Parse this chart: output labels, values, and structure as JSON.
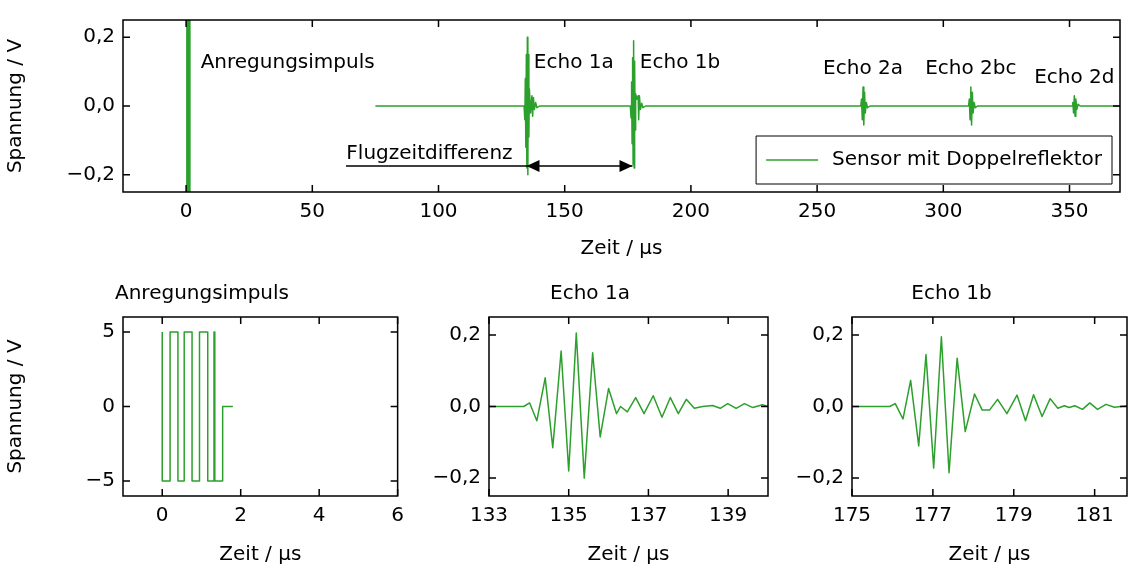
{
  "chart_data": [
    {
      "type": "line",
      "xlabel": "Zeit / µs",
      "ylabel": "Spannung / V",
      "xlim": [
        -25,
        370
      ],
      "ylim": [
        -0.25,
        0.25
      ],
      "xticks": [
        0,
        50,
        100,
        150,
        200,
        250,
        300,
        350
      ],
      "yticks": [
        {
          "value": -0.2,
          "label": "−0,2"
        },
        {
          "value": 0,
          "label": "0,0"
        },
        {
          "value": 0.2,
          "label": "0,2"
        }
      ],
      "legend": "bottom right",
      "bands": [
        {
          "axis": "x",
          "from": 0,
          "to": 1.8,
          "color": "#2ca02c"
        }
      ],
      "annotations": [
        {
          "text": "Anregungsimpuls",
          "x": 3,
          "y": 0.125
        },
        {
          "text": "Echo 1a",
          "x": 135,
          "y": 0.125
        },
        {
          "text": "Echo 1b",
          "x": 177,
          "y": 0.125
        },
        {
          "text": "Echo 2a",
          "x": 268.2,
          "y": 0.055
        },
        {
          "text": "Echo 2bc",
          "x": 310.9,
          "y": 0.055
        },
        {
          "text": "Echo 2d",
          "x": 351.9,
          "y": 0.03
        },
        {
          "text": "Flugzeitdifferenz",
          "x": 135.3,
          "y": -0.175
        }
      ],
      "series": [
        {
          "name": "Sensor mit Doppelreflektor",
          "color": "#2ca02c",
          "x": [
            75,
            133.9,
            134.2,
            134.4,
            134.6,
            134.8,
            135.0,
            135.2,
            135.4,
            135.6,
            135.8,
            136.0,
            136.5,
            137.0,
            137.3,
            137.6,
            138,
            138.5,
            139,
            140,
            142,
            176,
            176.3,
            176.5,
            176.7,
            176.9,
            177.1,
            177.3,
            177.5,
            177.7,
            177.9,
            178.1,
            178.6,
            179.1,
            179.3,
            179.6,
            180,
            180.5,
            181,
            182,
            185,
            267.3,
            267.6,
            267.9,
            268.2,
            268.5,
            268.8,
            269.1,
            269.5,
            270,
            271,
            310,
            310.3,
            310.6,
            310.9,
            311.2,
            311.5,
            311.8,
            312.2,
            312.7,
            313.5,
            351,
            351.3,
            351.6,
            351.9,
            352.2,
            352.5,
            352.9,
            353.4,
            354.2,
            370
          ],
          "values": [
            0,
            0,
            -0.04,
            0.08,
            -0.12,
            0.15,
            -0.18,
            0.2,
            -0.2,
            0.15,
            -0.09,
            0.05,
            -0.02,
            0.03,
            -0.03,
            0.025,
            -0.01,
            0.01,
            -0.005,
            0,
            0,
            0,
            -0.035,
            0.07,
            -0.11,
            0.14,
            -0.17,
            0.19,
            -0.18,
            0.13,
            -0.07,
            0.035,
            0.02,
            0.03,
            -0.04,
            0.03,
            -0.01,
            0.008,
            -0.005,
            0,
            0,
            0,
            0.02,
            -0.04,
            0.055,
            -0.055,
            0.04,
            -0.02,
            0.01,
            -0.005,
            0,
            0,
            0.02,
            -0.04,
            0.055,
            -0.055,
            0.04,
            -0.02,
            0.01,
            -0.005,
            0,
            0,
            0.01,
            -0.02,
            0.03,
            -0.03,
            0.02,
            -0.01,
            0.005,
            0,
            0
          ]
        }
      ]
    },
    {
      "type": "step",
      "title": "Anregungsimpuls",
      "xlabel": "Zeit / µs",
      "ylabel": "Spannung / V",
      "xlim": [
        -1,
        6
      ],
      "ylim": [
        -6,
        6
      ],
      "xticks": [
        0,
        2,
        4,
        6
      ],
      "yticks": [
        {
          "value": -5,
          "label": "−5"
        },
        0,
        5
      ],
      "series": [
        {
          "color": "#2ca02c",
          "x": [
            0,
            0.2,
            0.4,
            0.56,
            0.76,
            0.95,
            1.16,
            1.32,
            1.34,
            1.54,
            1.73,
            1.8
          ],
          "values": [
            5,
            -5,
            5,
            -5,
            5,
            -5,
            5,
            -5,
            5,
            -5,
            0,
            0
          ]
        }
      ]
    },
    {
      "type": "line",
      "title": "Echo 1a",
      "xlabel": "Zeit / µs",
      "xlim": [
        133,
        140
      ],
      "ylim": [
        -0.25,
        0.25
      ],
      "xticks": [
        133,
        135,
        137,
        139
      ],
      "yticks": [
        {
          "value": -0.2,
          "label": "−0,2"
        },
        {
          "value": 0,
          "label": "0,0"
        },
        {
          "value": 0.2,
          "label": "0,2"
        }
      ],
      "series": [
        {
          "color": "#2ca02c",
          "x": [
            133,
            133.87,
            134.02,
            134.2,
            134.41,
            134.6,
            134.81,
            135.0,
            135.19,
            135.39,
            135.6,
            135.79,
            136.0,
            136.2,
            136.3,
            136.47,
            136.68,
            136.89,
            137.12,
            137.34,
            137.55,
            137.75,
            137.95,
            138.15,
            138.36,
            138.61,
            138.8,
            138.99,
            139.2,
            139.41,
            139.62,
            139.86,
            140
          ],
          "values": [
            0,
            0,
            0.01,
            -0.04,
            0.08,
            -0.115,
            0.155,
            -0.18,
            0.205,
            -0.2,
            0.15,
            -0.085,
            0.05,
            -0.02,
            0,
            -0.015,
            0.025,
            -0.02,
            0.03,
            -0.03,
            0.025,
            -0.02,
            0.02,
            -0.005,
            0,
            0.003,
            -0.005,
            0.008,
            -0.005,
            0.008,
            -0.003,
            0.005,
            0
          ]
        }
      ]
    },
    {
      "type": "line",
      "title": "Echo 1b",
      "xlabel": "Zeit / µs",
      "xlim": [
        175,
        181.8
      ],
      "ylim": [
        -0.25,
        0.25
      ],
      "xticks": [
        175,
        177,
        179,
        181
      ],
      "yticks": [
        {
          "value": -0.2,
          "label": "−0,2"
        },
        {
          "value": 0,
          "label": "0,0"
        },
        {
          "value": 0.2,
          "label": "0,2"
        }
      ],
      "series": [
        {
          "color": "#2ca02c",
          "x": [
            175,
            175.93,
            176.07,
            176.26,
            176.45,
            176.65,
            176.83,
            177.02,
            177.21,
            177.4,
            177.6,
            177.8,
            178.03,
            178.22,
            178.32,
            178.4,
            178.6,
            178.83,
            179.08,
            179.29,
            179.49,
            179.7,
            179.9,
            180.09,
            180.25,
            180.37,
            180.51,
            180.7,
            180.88,
            181.07,
            181.28,
            181.49,
            181.8
          ],
          "values": [
            0,
            0,
            0.008,
            -0.035,
            0.073,
            -0.11,
            0.145,
            -0.172,
            0.195,
            -0.185,
            0.135,
            -0.07,
            0.035,
            -0.01,
            -0.01,
            -0.01,
            0.02,
            -0.02,
            0.032,
            -0.04,
            0.033,
            -0.028,
            0.022,
            -0.005,
            0.002,
            -0.003,
            0.002,
            -0.008,
            0.01,
            -0.008,
            0.006,
            -0.002,
            0.002
          ]
        }
      ]
    }
  ]
}
